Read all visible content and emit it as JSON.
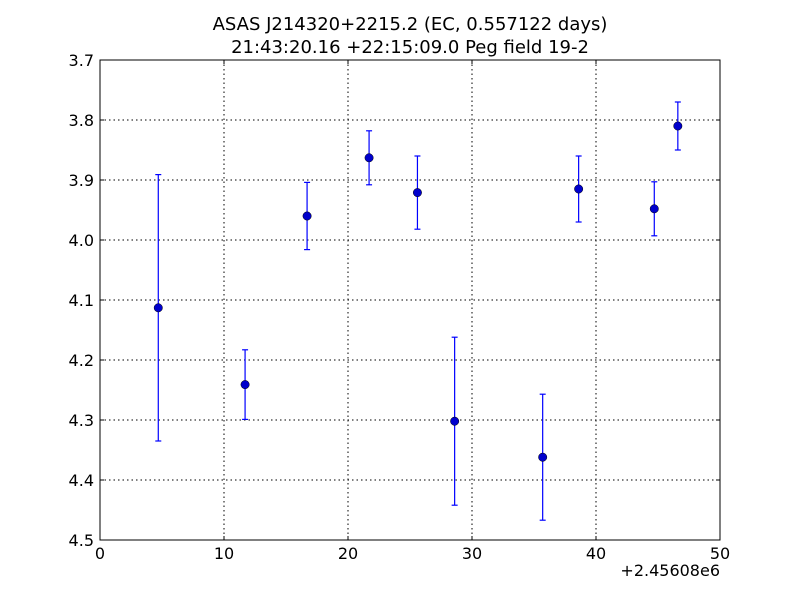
{
  "chart_data": {
    "type": "scatter",
    "title": "ASAS J214320+2215.2 (EC, 0.557122 days)",
    "subtitle": "21:43:20.16 +22:15:09.0 Peg field 19-2",
    "xlabel": "",
    "ylabel": "",
    "x_offset_label": "+2.45608e6",
    "xlim": [
      0,
      50
    ],
    "ylim": [
      4.5,
      3.7
    ],
    "y_inverted": true,
    "grid": true,
    "x_ticks": [
      "0",
      "10",
      "20",
      "30",
      "40",
      "50"
    ],
    "y_ticks": [
      "3.7",
      "3.8",
      "3.9",
      "4.0",
      "4.1",
      "4.2",
      "4.3",
      "4.4",
      "4.5"
    ],
    "marker_color": "#0000cc",
    "errorbar_color": "#0000ff",
    "points": [
      {
        "x": 4.7,
        "y": 4.113,
        "err": 0.222
      },
      {
        "x": 11.7,
        "y": 4.241,
        "err": 0.058
      },
      {
        "x": 16.7,
        "y": 3.96,
        "err": 0.056
      },
      {
        "x": 21.7,
        "y": 3.863,
        "err": 0.045
      },
      {
        "x": 25.6,
        "y": 3.921,
        "err": 0.061
      },
      {
        "x": 28.6,
        "y": 4.302,
        "err": 0.14
      },
      {
        "x": 35.7,
        "y": 4.362,
        "err": 0.105
      },
      {
        "x": 38.6,
        "y": 3.915,
        "err": 0.055
      },
      {
        "x": 44.7,
        "y": 3.948,
        "err": 0.045
      },
      {
        "x": 46.6,
        "y": 3.81,
        "err": 0.04
      }
    ]
  }
}
